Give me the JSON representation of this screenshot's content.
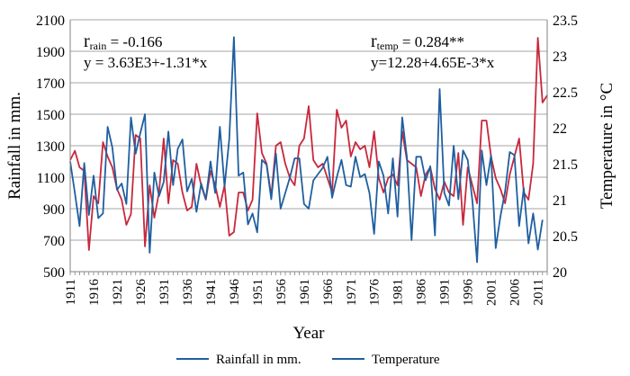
{
  "chart_data": {
    "type": "line",
    "xlabel": "Year",
    "ylabel": "Rainfall in mm.",
    "y2label_prefix": "Temperature in ",
    "y2label_unit": "°C",
    "ylim": [
      500,
      2100
    ],
    "yticks": [
      500,
      700,
      900,
      1100,
      1300,
      1500,
      1700,
      1900,
      2100
    ],
    "y2lim": [
      20,
      23.5
    ],
    "y2ticks": [
      "20",
      "20.5",
      "21",
      "21.5",
      "22",
      "22.5",
      "23",
      "23.5"
    ],
    "xlim": [
      1911,
      2013
    ],
    "xticks": [
      "1911",
      "1916",
      "1921",
      "1926",
      "1931",
      "1936",
      "1941",
      "1946",
      "1951",
      "1956",
      "1961",
      "1966",
      "1971",
      "1976",
      "1981",
      "1986",
      "1991",
      "1996",
      "2001",
      "2006",
      "2011"
    ],
    "grid": true,
    "legend_position": "bottom",
    "annotations": {
      "rain_r_main": "r",
      "rain_r_sub": "rain",
      "rain_r_value": " = -0.166",
      "rain_eq": "y = 3.63E3+-1.31*x",
      "temp_r_main": "r",
      "temp_r_sub": "temp",
      "temp_r_value": " = 0.284**",
      "temp_eq": "y=12.28+4.65E-3*x"
    },
    "series": [
      {
        "name": "Rainfall in mm.",
        "color": "#1f5fa0",
        "axis": "left",
        "x_start": 1911,
        "values": [
          1200,
          1000,
          790,
          1190,
          860,
          1110,
          840,
          870,
          1420,
          1290,
          1020,
          1060,
          930,
          1480,
          1250,
          1380,
          1500,
          620,
          1130,
          980,
          1070,
          1390,
          1050,
          1280,
          1340,
          1010,
          1090,
          880,
          1060,
          960,
          1200,
          1000,
          1420,
          1040,
          1340,
          1990,
          1110,
          1130,
          800,
          870,
          750,
          1210,
          1180,
          960,
          1250,
          900,
          1000,
          1100,
          1220,
          1220,
          930,
          900,
          1080,
          1120,
          1160,
          1230,
          970,
          1100,
          1210,
          1050,
          1040,
          1230,
          1100,
          1120,
          1000,
          740,
          1200,
          1110,
          870,
          1220,
          850,
          1480,
          1230,
          700,
          1230,
          1230,
          1080,
          1170,
          730,
          1660,
          1000,
          920,
          1300,
          960,
          1270,
          1210,
          950,
          560,
          1270,
          1050,
          1240,
          650,
          850,
          1010,
          1260,
          1240,
          790,
          1030,
          680,
          870,
          640,
          830
        ]
      },
      {
        "name": "Temperature",
        "color": "#c8283c",
        "axis": "right",
        "x_start": 1911,
        "values": [
          21.55,
          21.68,
          21.45,
          21.4,
          20.3,
          21.05,
          20.95,
          21.8,
          21.6,
          21.45,
          21.15,
          21.0,
          20.65,
          20.8,
          21.9,
          21.85,
          20.35,
          21.2,
          20.75,
          21.1,
          21.85,
          20.95,
          21.55,
          21.5,
          21.1,
          20.85,
          20.9,
          21.5,
          21.2,
          21.0,
          21.4,
          21.2,
          20.9,
          21.2,
          20.5,
          20.55,
          21.1,
          21.1,
          20.85,
          21.0,
          22.2,
          21.65,
          21.5,
          21.05,
          21.75,
          21.8,
          21.5,
          21.3,
          21.2,
          21.75,
          21.85,
          22.3,
          21.55,
          21.45,
          21.5,
          21.3,
          21.1,
          22.25,
          22.0,
          22.1,
          21.6,
          21.8,
          21.7,
          21.75,
          21.45,
          21.95,
          21.3,
          21.1,
          21.3,
          21.35,
          21.2,
          21.95,
          21.55,
          21.5,
          21.45,
          21.05,
          21.35,
          21.45,
          21.15,
          21.0,
          21.25,
          21.1,
          21.05,
          21.65,
          20.65,
          21.45,
          21.2,
          20.95,
          22.1,
          22.1,
          21.6,
          21.3,
          21.15,
          20.95,
          21.35,
          21.6,
          21.85,
          21.1,
          21.0,
          21.5,
          23.25,
          22.35,
          22.45
        ]
      }
    ]
  }
}
